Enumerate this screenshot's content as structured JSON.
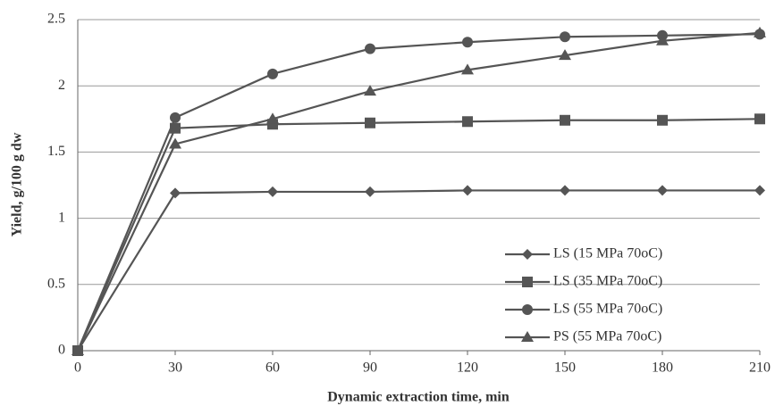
{
  "chart_data": {
    "type": "line",
    "x_label": "Dynamic extraction time, min",
    "y_label": "Yield, g/100 g dw",
    "x": [
      0,
      30,
      60,
      90,
      120,
      150,
      180,
      210
    ],
    "series": [
      {
        "name": "LS (15 MPa 70oC)",
        "color": "#555555",
        "marker": "diamond",
        "values": [
          0,
          1.19,
          1.2,
          1.2,
          1.21,
          1.21,
          1.21,
          1.21
        ]
      },
      {
        "name": "LS (35 MPa 70oC)",
        "color": "#555555",
        "marker": "square",
        "values": [
          0,
          1.68,
          1.71,
          1.72,
          1.73,
          1.74,
          1.74,
          1.75
        ]
      },
      {
        "name": "LS (55 MPa 70oC)",
        "color": "#555555",
        "marker": "circle",
        "values": [
          0,
          1.76,
          2.09,
          2.28,
          2.33,
          2.37,
          2.38,
          2.39
        ]
      },
      {
        "name": "PS (55 MPa 70oC)",
        "color": "#555555",
        "marker": "triangle",
        "values": [
          0,
          1.56,
          1.75,
          1.96,
          2.12,
          2.23,
          2.34,
          2.4
        ]
      }
    ],
    "xlim": [
      0,
      210
    ],
    "xticks": [
      0,
      30,
      60,
      90,
      120,
      150,
      180,
      210
    ],
    "ylim": [
      0,
      2.5
    ],
    "yticks": [
      0,
      0.5,
      1,
      1.5,
      2,
      2.5
    ],
    "grid": true,
    "legend": "lower right"
  }
}
